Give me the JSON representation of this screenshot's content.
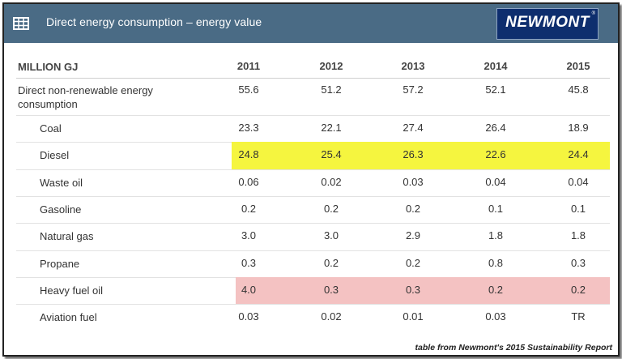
{
  "header": {
    "title": "Direct energy consumption – energy value",
    "logo_text": "NEWMONT",
    "logo_mark": "®"
  },
  "table": {
    "unit_label": "MILLION GJ",
    "years": [
      "2011",
      "2012",
      "2013",
      "2014",
      "2015"
    ],
    "rows": [
      {
        "label": "Direct non-renewable energy consumption",
        "values": [
          "55.6",
          "51.2",
          "57.2",
          "52.1",
          "45.8"
        ],
        "indent": false,
        "highlight": ""
      },
      {
        "label": "Coal",
        "values": [
          "23.3",
          "22.1",
          "27.4",
          "26.4",
          "18.9"
        ],
        "indent": true,
        "highlight": ""
      },
      {
        "label": "Diesel",
        "values": [
          "24.8",
          "25.4",
          "26.3",
          "22.6",
          "24.4"
        ],
        "indent": true,
        "highlight": "#f5f53f"
      },
      {
        "label": "Waste oil",
        "values": [
          "0.06",
          "0.02",
          "0.03",
          "0.04",
          "0.04"
        ],
        "indent": true,
        "highlight": ""
      },
      {
        "label": "Gasoline",
        "values": [
          "0.2",
          "0.2",
          "0.2",
          "0.1",
          "0.1"
        ],
        "indent": true,
        "highlight": ""
      },
      {
        "label": "Natural gas",
        "values": [
          "3.0",
          "3.0",
          "2.9",
          "1.8",
          "1.8"
        ],
        "indent": true,
        "highlight": ""
      },
      {
        "label": "Propane",
        "values": [
          "0.3",
          "0.2",
          "0.2",
          "0.8",
          "0.3"
        ],
        "indent": true,
        "highlight": ""
      },
      {
        "label": "Heavy fuel oil",
        "values": [
          "4.0",
          "0.3",
          "0.3",
          "0.2",
          "0.2"
        ],
        "indent": true,
        "highlight": "#f4c2c2"
      },
      {
        "label": "Aviation fuel",
        "values": [
          "0.03",
          "0.02",
          "0.01",
          "0.03",
          "TR"
        ],
        "indent": true,
        "highlight": ""
      }
    ]
  },
  "footer": {
    "caption": "table from Newmont's 2015 Sustainability Report"
  }
}
